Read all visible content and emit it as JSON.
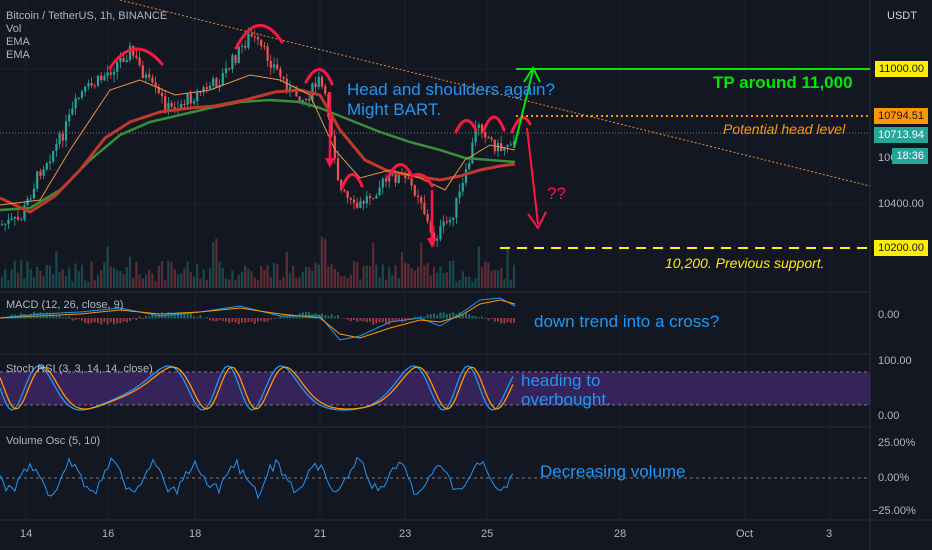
{
  "header": {
    "symbol": "Bitcoin / TetherUS, 1h, BINANCE",
    "indicators": [
      "Vol",
      "EMA",
      "EMA"
    ]
  },
  "price_axis": {
    "currency": "USDT",
    "labels": [
      "11000.00",
      "10794.51",
      "10713.94",
      "10400.00",
      "10200.00"
    ],
    "current_time": "18:36",
    "partial_label": "106"
  },
  "panes": {
    "macd": {
      "label": "MACD (12, 26, close, 9)",
      "axis": [
        "0.00"
      ]
    },
    "stoch": {
      "label": "Stoch RSI (3, 3, 14, 14, close)",
      "axis": [
        "100.00",
        "0.00"
      ]
    },
    "volosc": {
      "label": "Volume Osc (5, 10)",
      "axis": [
        "25.00%",
        "0.00%",
        "−25.00%"
      ]
    }
  },
  "time_axis": [
    "14",
    "16",
    "18",
    "21",
    "23",
    "25",
    "28",
    "Oct",
    "3"
  ],
  "annotations": {
    "hs": "Head and shoulders again?\nMight BART.",
    "tp": "TP around 11,000",
    "head": "Potential head level",
    "qq": "??",
    "support": "10,200. Previous support.",
    "macd": "down trend into a cross?",
    "stoch": "heading to\noverbought.",
    "vol": "Decreasing volume"
  },
  "colors": {
    "background": "#131722",
    "up": "#26a69a",
    "down": "#ef5350",
    "ema_fast": "#c0392b",
    "ema_slow": "#388e3c",
    "tp_line": "#00e600",
    "head_line": "#ff9800",
    "support_line": "#ffee00",
    "annotation_blue": "#2196f3",
    "trendline": "#e08a3c"
  },
  "chart_data": {
    "type": "line",
    "title": "Bitcoin / TetherUS, 1h, BINANCE",
    "x": [
      "14",
      "16",
      "18",
      "21",
      "23",
      "25"
    ],
    "ylim": [
      10200,
      11000
    ],
    "series": [
      {
        "name": "EMA",
        "values": [
          10380,
          10680,
          10750,
          10660,
          10540,
          10600
        ]
      },
      {
        "name": "EMA",
        "values": [
          10400,
          10580,
          10660,
          10690,
          10620,
          10610
        ]
      }
    ],
    "levels": {
      "take_profit": 11000,
      "head_level": 10794.51,
      "last_price": 10713.94,
      "support": 10200
    },
    "grid": true
  }
}
